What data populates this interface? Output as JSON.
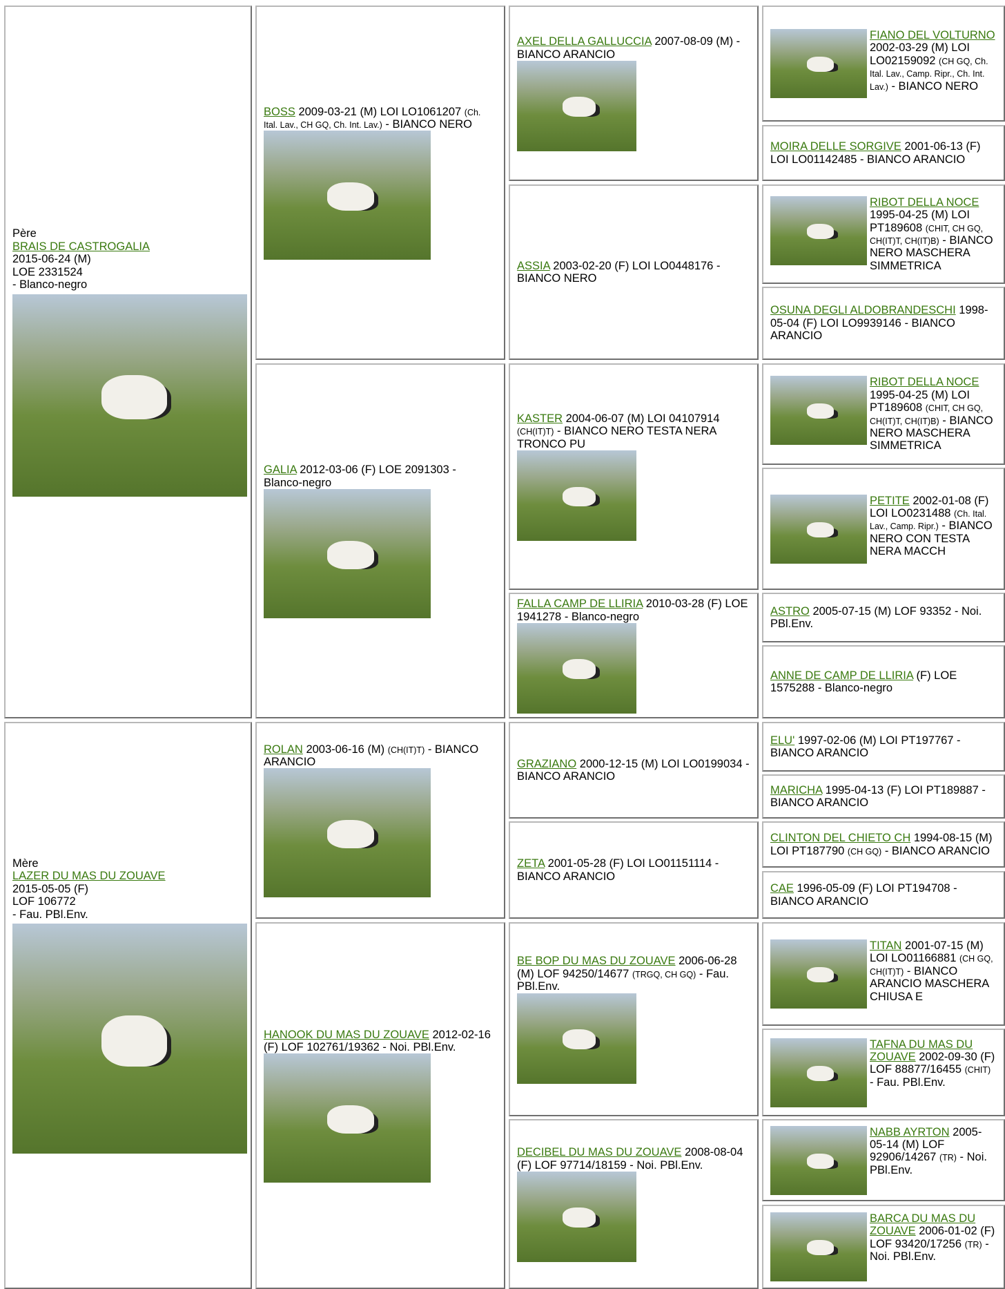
{
  "pedigree": {
    "sire": {
      "label": "Père",
      "name": "BRAIS DE CASTROGALIA",
      "lines": [
        "2015-06-24 (M)",
        "LOE 2331524",
        "- Blanco-negro"
      ]
    },
    "dam": {
      "label": "Mère",
      "name": "LAZER DU MAS DU ZOUAVE",
      "lines": [
        "2015-05-05 (F)",
        "LOF 106772",
        "- Fau. PBl.Env."
      ]
    },
    "gen2": [
      {
        "name": "BOSS",
        "text": "2009-03-21 (M) LOI LO1061207",
        "small": "(Ch. Ital. Lav., CH GQ, Ch. Int. Lav.)",
        "rest": "- BIANCO NERO"
      },
      {
        "name": "GALIA",
        "text": "2012-03-06 (F) LOE 2091303 - Blanco-negro"
      },
      {
        "name": "ROLAN",
        "text": "2003-06-16 (M)",
        "small": "(CH(IT)T)",
        "rest": "- BIANCO ARANCIO"
      },
      {
        "name": "HANOOK DU MAS DU ZOUAVE",
        "text": "2012-02-16 (F) LOF 102761/19362 - Noi. PBl.Env."
      }
    ],
    "gen3": [
      {
        "name": "AXEL DELLA GALLUCCIA",
        "text": "2007-08-09 (M) - BIANCO ARANCIO"
      },
      {
        "name": "ASSIA",
        "text": "2003-02-20 (F) LOI LO0448176 - BIANCO NERO"
      },
      {
        "name": "KASTER",
        "text": "2004-06-07 (M) LOI 04107914",
        "small": "(CH(IT)T)",
        "rest": "- BIANCO NERO TESTA NERA TRONCO PU"
      },
      {
        "name": "FALLA CAMP DE LLIRIA",
        "text": "2010-03-28 (F) LOE 1941278 - Blanco-negro"
      },
      {
        "name": "GRAZIANO",
        "text": "2000-12-15 (M) LOI LO0199034 - BIANCO ARANCIO"
      },
      {
        "name": "ZETA",
        "text": "2001-05-28 (F) LOI LO01151114 - BIANCO ARANCIO"
      },
      {
        "name": "BE BOP DU MAS DU ZOUAVE",
        "text": "2006-06-28 (M) LOF 94250/14677",
        "small": "(TRGQ, CH GQ)",
        "rest": "- Fau. PBl.Env."
      },
      {
        "name": "DECIBEL DU MAS DU ZOUAVE",
        "text": "2008-08-04 (F) LOF 97714/18159 - Noi. PBl.Env."
      }
    ],
    "gen4": [
      {
        "name": "FIANO DEL VOLTURNO",
        "text": "2002-03-29 (M) LOI LO02159092",
        "small": "(CH GQ, Ch. Ital. Lav., Camp. Ripr., Ch. Int. Lav.)",
        "rest": "- BIANCO NERO"
      },
      {
        "name": "MOIRA DELLE SORGIVE",
        "text": "2001-06-13 (F) LOI LO01142485 - BIANCO ARANCIO"
      },
      {
        "name": "RIBOT DELLA NOCE",
        "text": "1995-04-25 (M) LOI PT189608",
        "small": "(CHIT, CH GQ, CH(IT)T, CH(IT)B)",
        "rest": "- BIANCO NERO MASCHERA SIMMETRICA"
      },
      {
        "name": "OSUNA DEGLI ALDOBRANDESCHI",
        "text": "1998-05-04 (F) LOI LO9939146 - BIANCO ARANCIO"
      },
      {
        "name": "RIBOT DELLA NOCE",
        "text": "1995-04-25 (M) LOI PT189608",
        "small": "(CHIT, CH GQ, CH(IT)T, CH(IT)B)",
        "rest": "- BIANCO NERO MASCHERA SIMMETRICA"
      },
      {
        "name": "PETITE",
        "text": "2002-01-08 (F) LOI LO0231488",
        "small": "(Ch. Ital. Lav., Camp. Ripr.)",
        "rest": "- BIANCO NERO CON TESTA NERA MACCH"
      },
      {
        "name": "ASTRO",
        "text": "2005-07-15 (M) LOF 93352 - Noi. PBl.Env."
      },
      {
        "name": "ANNE DE CAMP DE LLIRIA",
        "text": "(F) LOE 1575288 - Blanco-negro"
      },
      {
        "name": "ELU'",
        "text": "1997-02-06 (M) LOI PT197767 - BIANCO ARANCIO"
      },
      {
        "name": "MARICHA",
        "text": "1995-04-13 (F) LOI PT189887 - BIANCO ARANCIO"
      },
      {
        "name": "CLINTON DEL CHIETO CH",
        "text": "1994-08-15 (M) LOI PT187790",
        "small": "(CH GQ)",
        "rest": "- BIANCO ARANCIO"
      },
      {
        "name": "CAE",
        "text": "1996-05-09 (F) LOI PT194708 - BIANCO ARANCIO"
      },
      {
        "name": "TITAN",
        "text": "2001-07-15 (M) LOI LO01166881",
        "small": "(CH GQ, CH(IT)T)",
        "rest": "- BIANCO ARANCIO MASCHERA CHIUSA E"
      },
      {
        "name": "TAFNA DU MAS DU ZOUAVE",
        "text": "2002-09-30 (F) LOF 88877/16455",
        "small": "(CHIT)",
        "rest": "- Fau. PBl.Env."
      },
      {
        "name": "NABB AYRTON",
        "text": "2005-05-14 (M) LOF 92906/14267",
        "small": "(TR)",
        "rest": "- Noi. PBl.Env."
      },
      {
        "name": "BARCA DU MAS DU ZOUAVE",
        "text": "2006-01-02 (F) LOF 93420/17256",
        "small": "(TR)",
        "rest": "- Noi. PBl.Env."
      }
    ]
  }
}
